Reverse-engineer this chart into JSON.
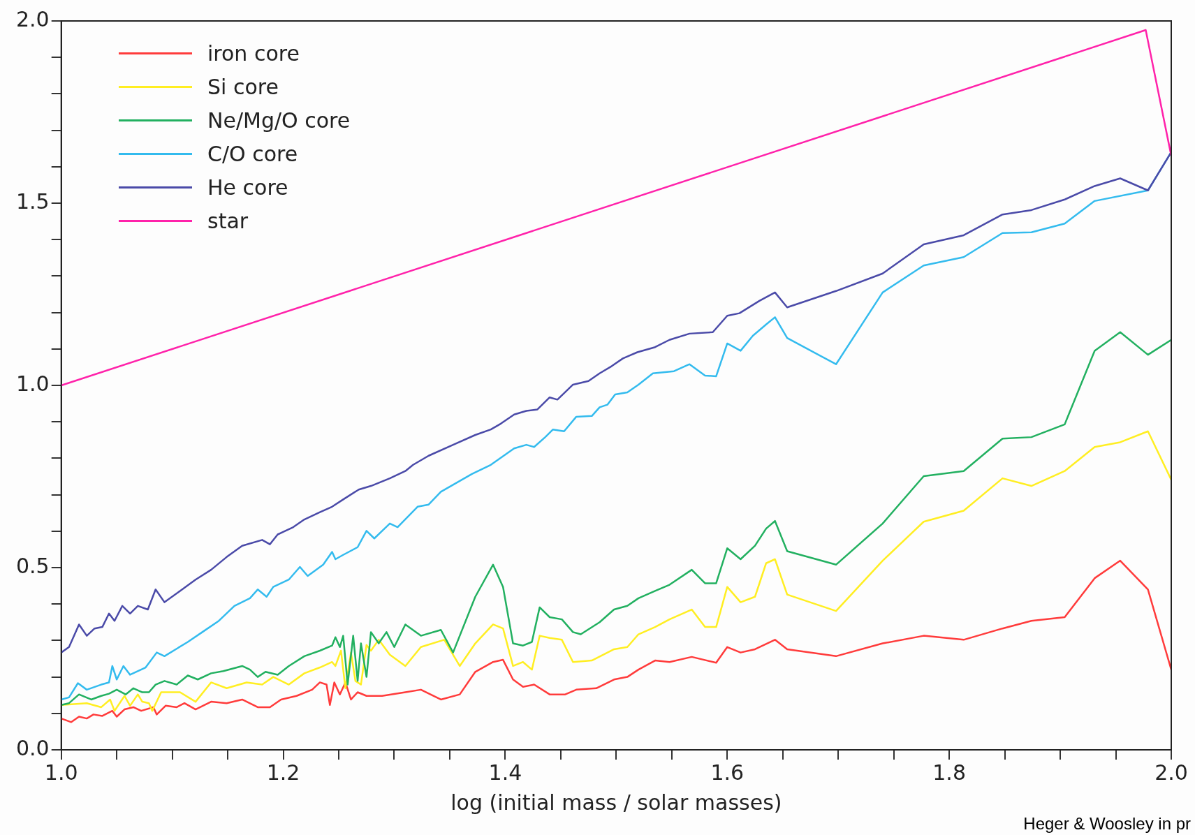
{
  "chart_data": {
    "type": "line",
    "xlabel": "log (initial mass / solar masses)",
    "annotations": [
      "Heger & Woosley in pr"
    ],
    "xlim": [
      1.0,
      2.0
    ],
    "ylim": [
      0.0,
      2.0
    ],
    "xticks": [
      {
        "value": 1.0,
        "label": "1.0"
      },
      {
        "value": 1.05,
        "label": null
      },
      {
        "value": 1.1,
        "label": null
      },
      {
        "value": 1.15,
        "label": null
      },
      {
        "value": 1.2,
        "label": "1.2"
      },
      {
        "value": 1.25,
        "label": null
      },
      {
        "value": 1.3,
        "label": null
      },
      {
        "value": 1.35,
        "label": null
      },
      {
        "value": 1.4,
        "label": "1.4"
      },
      {
        "value": 1.45,
        "label": null
      },
      {
        "value": 1.5,
        "label": null
      },
      {
        "value": 1.55,
        "label": null
      },
      {
        "value": 1.6,
        "label": "1.6"
      },
      {
        "value": 1.65,
        "label": null
      },
      {
        "value": 1.7,
        "label": null
      },
      {
        "value": 1.75,
        "label": null
      },
      {
        "value": 1.8,
        "label": "1.8"
      },
      {
        "value": 1.85,
        "label": null
      },
      {
        "value": 1.9,
        "label": null
      },
      {
        "value": 1.95,
        "label": null
      },
      {
        "value": 2.0,
        "label": "2.0"
      }
    ],
    "yticks": [
      {
        "value": 0.0,
        "label": "0.0"
      },
      {
        "value": 0.1,
        "label": null
      },
      {
        "value": 0.2,
        "label": null
      },
      {
        "value": 0.3,
        "label": null
      },
      {
        "value": 0.4,
        "label": null
      },
      {
        "value": 0.5,
        "label": "0.5"
      },
      {
        "value": 0.6,
        "label": null
      },
      {
        "value": 0.7,
        "label": null
      },
      {
        "value": 0.8,
        "label": null
      },
      {
        "value": 0.9,
        "label": null
      },
      {
        "value": 1.0,
        "label": "1.0"
      },
      {
        "value": 1.1,
        "label": null
      },
      {
        "value": 1.2,
        "label": null
      },
      {
        "value": 1.3,
        "label": null
      },
      {
        "value": 1.4,
        "label": null
      },
      {
        "value": 1.5,
        "label": "1.5"
      },
      {
        "value": 1.6,
        "label": null
      },
      {
        "value": 1.7,
        "label": null
      },
      {
        "value": 1.8,
        "label": null
      },
      {
        "value": 1.9,
        "label": null
      },
      {
        "value": 2.0,
        "label": "2.0"
      }
    ],
    "grid": false,
    "legend": "top left",
    "marker": "none",
    "line_style": "solid",
    "series": [
      {
        "name": "iron core",
        "color": "#ff3b3b",
        "x": [
          1.0,
          1.009,
          1.016,
          1.023,
          1.029,
          1.037,
          1.046,
          1.05,
          1.057,
          1.065,
          1.072,
          1.083,
          1.086,
          1.094,
          1.104,
          1.111,
          1.121,
          1.135,
          1.149,
          1.163,
          1.177,
          1.188,
          1.198,
          1.212,
          1.226,
          1.233,
          1.239,
          1.242,
          1.246,
          1.251,
          1.256,
          1.261,
          1.267,
          1.275,
          1.289,
          1.31,
          1.324,
          1.342,
          1.359,
          1.373,
          1.389,
          1.398,
          1.407,
          1.416,
          1.426,
          1.44,
          1.454,
          1.464,
          1.482,
          1.498,
          1.51,
          1.52,
          1.535,
          1.548,
          1.568,
          1.59,
          1.6,
          1.612,
          1.625,
          1.643,
          1.654,
          1.698,
          1.74,
          1.777,
          1.813,
          1.848,
          1.874,
          1.904,
          1.931,
          1.954,
          1.979,
          2.0
        ],
        "values": [
          0.086,
          0.076,
          0.091,
          0.086,
          0.097,
          0.093,
          0.107,
          0.091,
          0.111,
          0.117,
          0.107,
          0.117,
          0.097,
          0.121,
          0.117,
          0.128,
          0.111,
          0.132,
          0.128,
          0.138,
          0.117,
          0.117,
          0.138,
          0.148,
          0.165,
          0.185,
          0.179,
          0.123,
          0.185,
          0.152,
          0.185,
          0.138,
          0.158,
          0.148,
          0.148,
          0.158,
          0.165,
          0.138,
          0.152,
          0.214,
          0.241,
          0.247,
          0.193,
          0.173,
          0.179,
          0.152,
          0.152,
          0.165,
          0.169,
          0.193,
          0.2,
          0.22,
          0.245,
          0.241,
          0.255,
          0.239,
          0.282,
          0.267,
          0.276,
          0.302,
          0.276,
          0.257,
          0.292,
          0.313,
          0.302,
          0.333,
          0.354,
          0.364,
          0.471,
          0.519,
          0.44,
          0.22
        ]
      },
      {
        "name": "Si core",
        "color": "#ffee22",
        "x": [
          1.0,
          1.023,
          1.036,
          1.044,
          1.048,
          1.057,
          1.062,
          1.069,
          1.073,
          1.079,
          1.082,
          1.09,
          1.107,
          1.121,
          1.135,
          1.149,
          1.167,
          1.181,
          1.191,
          1.205,
          1.219,
          1.233,
          1.244,
          1.247,
          1.252,
          1.256,
          1.261,
          1.265,
          1.27,
          1.275,
          1.279,
          1.286,
          1.296,
          1.31,
          1.324,
          1.345,
          1.359,
          1.373,
          1.389,
          1.398,
          1.407,
          1.416,
          1.424,
          1.431,
          1.44,
          1.451,
          1.461,
          1.478,
          1.498,
          1.51,
          1.52,
          1.535,
          1.548,
          1.568,
          1.58,
          1.59,
          1.6,
          1.612,
          1.625,
          1.635,
          1.643,
          1.654,
          1.698,
          1.74,
          1.777,
          1.813,
          1.848,
          1.874,
          1.904,
          1.931,
          1.954,
          1.979,
          2.0
        ],
        "values": [
          0.123,
          0.128,
          0.117,
          0.138,
          0.107,
          0.148,
          0.121,
          0.152,
          0.132,
          0.128,
          0.107,
          0.158,
          0.158,
          0.132,
          0.185,
          0.169,
          0.185,
          0.179,
          0.2,
          0.179,
          0.21,
          0.226,
          0.241,
          0.23,
          0.272,
          0.169,
          0.267,
          0.189,
          0.179,
          0.288,
          0.272,
          0.302,
          0.261,
          0.23,
          0.282,
          0.302,
          0.23,
          0.292,
          0.344,
          0.333,
          0.23,
          0.241,
          0.22,
          0.313,
          0.307,
          0.302,
          0.241,
          0.245,
          0.276,
          0.282,
          0.317,
          0.337,
          0.358,
          0.385,
          0.337,
          0.337,
          0.447,
          0.405,
          0.42,
          0.512,
          0.523,
          0.426,
          0.381,
          0.519,
          0.626,
          0.656,
          0.745,
          0.724,
          0.765,
          0.831,
          0.844,
          0.874,
          0.741
        ]
      },
      {
        "name": "Ne/Mg/O core",
        "color": "#22b060",
        "x": [
          1.0,
          1.007,
          1.016,
          1.027,
          1.036,
          1.043,
          1.05,
          1.058,
          1.065,
          1.073,
          1.079,
          1.085,
          1.093,
          1.104,
          1.114,
          1.123,
          1.135,
          1.146,
          1.163,
          1.17,
          1.177,
          1.184,
          1.195,
          1.205,
          1.219,
          1.233,
          1.244,
          1.247,
          1.251,
          1.254,
          1.258,
          1.263,
          1.267,
          1.27,
          1.275,
          1.279,
          1.286,
          1.293,
          1.3,
          1.31,
          1.324,
          1.342,
          1.353,
          1.373,
          1.389,
          1.398,
          1.407,
          1.416,
          1.424,
          1.431,
          1.44,
          1.451,
          1.461,
          1.468,
          1.485,
          1.498,
          1.51,
          1.52,
          1.535,
          1.548,
          1.568,
          1.58,
          1.59,
          1.6,
          1.612,
          1.625,
          1.635,
          1.643,
          1.654,
          1.698,
          1.74,
          1.777,
          1.813,
          1.848,
          1.874,
          1.904,
          1.931,
          1.954,
          1.979,
          2.0
        ],
        "values": [
          0.123,
          0.128,
          0.152,
          0.138,
          0.148,
          0.154,
          0.165,
          0.152,
          0.169,
          0.158,
          0.158,
          0.179,
          0.189,
          0.179,
          0.204,
          0.193,
          0.21,
          0.216,
          0.23,
          0.22,
          0.2,
          0.214,
          0.206,
          0.23,
          0.257,
          0.272,
          0.286,
          0.309,
          0.282,
          0.313,
          0.179,
          0.313,
          0.189,
          0.292,
          0.2,
          0.323,
          0.292,
          0.323,
          0.282,
          0.344,
          0.313,
          0.329,
          0.267,
          0.42,
          0.508,
          0.447,
          0.292,
          0.286,
          0.296,
          0.391,
          0.364,
          0.358,
          0.323,
          0.317,
          0.35,
          0.385,
          0.395,
          0.416,
          0.436,
          0.453,
          0.494,
          0.457,
          0.457,
          0.553,
          0.523,
          0.56,
          0.607,
          0.628,
          0.545,
          0.508,
          0.621,
          0.751,
          0.765,
          0.854,
          0.858,
          0.893,
          1.095,
          1.146,
          1.084,
          1.125
        ]
      },
      {
        "name": "C/O core",
        "color": "#33bbee",
        "x": [
          1.0,
          1.007,
          1.015,
          1.023,
          1.036,
          1.043,
          1.046,
          1.05,
          1.056,
          1.062,
          1.076,
          1.086,
          1.093,
          1.114,
          1.128,
          1.142,
          1.156,
          1.17,
          1.177,
          1.185,
          1.191,
          1.205,
          1.215,
          1.222,
          1.236,
          1.244,
          1.247,
          1.254,
          1.267,
          1.275,
          1.282,
          1.296,
          1.303,
          1.321,
          1.331,
          1.342,
          1.37,
          1.387,
          1.408,
          1.419,
          1.426,
          1.436,
          1.443,
          1.453,
          1.464,
          1.478,
          1.485,
          1.492,
          1.499,
          1.51,
          1.52,
          1.533,
          1.552,
          1.566,
          1.58,
          1.59,
          1.6,
          1.612,
          1.623,
          1.635,
          1.643,
          1.654,
          1.698,
          1.74,
          1.777,
          1.813,
          1.848,
          1.874,
          1.904,
          1.931,
          1.979,
          2.0
        ],
        "values": [
          0.138,
          0.144,
          0.183,
          0.165,
          0.179,
          0.185,
          0.23,
          0.193,
          0.23,
          0.206,
          0.226,
          0.267,
          0.257,
          0.296,
          0.325,
          0.354,
          0.395,
          0.416,
          0.44,
          0.42,
          0.447,
          0.467,
          0.502,
          0.477,
          0.508,
          0.543,
          0.523,
          0.535,
          0.556,
          0.601,
          0.58,
          0.621,
          0.611,
          0.667,
          0.673,
          0.708,
          0.757,
          0.782,
          0.827,
          0.837,
          0.831,
          0.858,
          0.879,
          0.874,
          0.914,
          0.916,
          0.94,
          0.947,
          0.975,
          0.981,
          1.002,
          1.033,
          1.039,
          1.058,
          1.027,
          1.025,
          1.115,
          1.095,
          1.136,
          1.167,
          1.187,
          1.13,
          1.058,
          1.255,
          1.329,
          1.352,
          1.418,
          1.42,
          1.444,
          1.506,
          1.535,
          1.64
        ]
      },
      {
        "name": "He core",
        "color": "#4a4aa8",
        "x": [
          1.0,
          1.007,
          1.016,
          1.023,
          1.03,
          1.037,
          1.043,
          1.048,
          1.055,
          1.062,
          1.069,
          1.078,
          1.085,
          1.093,
          1.107,
          1.121,
          1.135,
          1.149,
          1.163,
          1.181,
          1.188,
          1.195,
          1.209,
          1.219,
          1.233,
          1.244,
          1.254,
          1.268,
          1.279,
          1.296,
          1.31,
          1.317,
          1.331,
          1.353,
          1.373,
          1.387,
          1.396,
          1.408,
          1.419,
          1.429,
          1.44,
          1.447,
          1.461,
          1.475,
          1.485,
          1.496,
          1.506,
          1.519,
          1.535,
          1.548,
          1.566,
          1.587,
          1.6,
          1.611,
          1.629,
          1.643,
          1.654,
          1.698,
          1.74,
          1.777,
          1.813,
          1.848,
          1.874,
          1.904,
          1.931,
          1.954,
          1.979,
          2.0
        ],
        "values": [
          0.267,
          0.282,
          0.344,
          0.313,
          0.333,
          0.337,
          0.374,
          0.354,
          0.395,
          0.374,
          0.395,
          0.385,
          0.44,
          0.405,
          0.436,
          0.467,
          0.494,
          0.529,
          0.56,
          0.576,
          0.564,
          0.591,
          0.611,
          0.632,
          0.652,
          0.667,
          0.687,
          0.714,
          0.724,
          0.745,
          0.765,
          0.782,
          0.807,
          0.837,
          0.864,
          0.879,
          0.895,
          0.92,
          0.93,
          0.934,
          0.967,
          0.961,
          1.002,
          1.012,
          1.033,
          1.053,
          1.074,
          1.091,
          1.105,
          1.125,
          1.142,
          1.146,
          1.191,
          1.198,
          1.232,
          1.255,
          1.214,
          1.259,
          1.307,
          1.387,
          1.412,
          1.469,
          1.481,
          1.51,
          1.547,
          1.568,
          1.535,
          1.64
        ]
      },
      {
        "name": "star",
        "color": "#ff22aa",
        "x": [
          1.0,
          1.977,
          2.0
        ],
        "values": [
          1.0,
          1.975,
          1.63
        ]
      }
    ]
  }
}
